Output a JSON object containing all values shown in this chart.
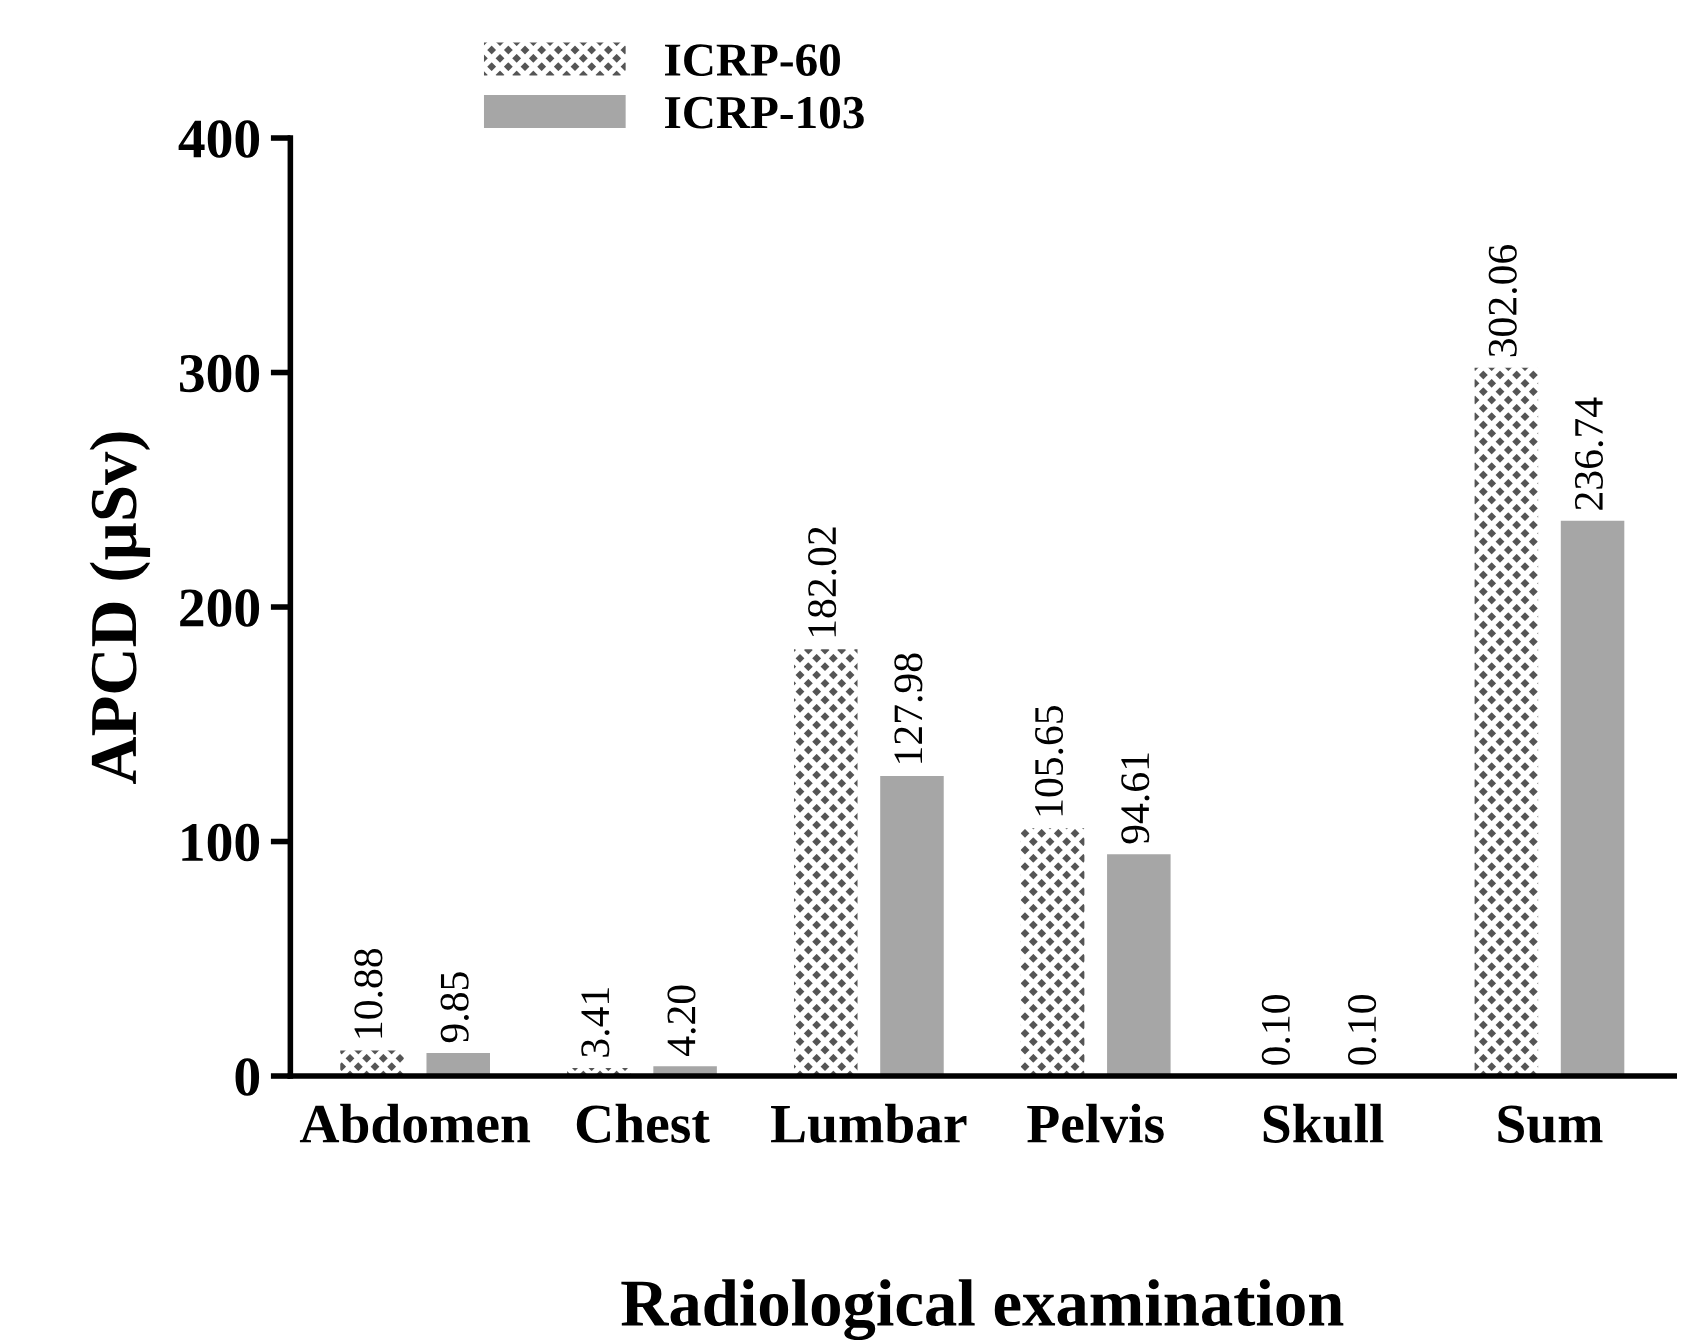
{
  "chart_data": {
    "type": "bar",
    "xlabel": "Radiological examination",
    "ylabel": "APCD (µSv)",
    "categories": [
      "Abdomen",
      "Chest",
      "Lumbar",
      "Pelvis",
      "Skull",
      "Sum"
    ],
    "series": [
      {
        "name": "ICRP-60",
        "color": "#555555",
        "values": [
          10.88,
          3.41,
          182.02,
          105.65,
          0.1,
          302.06
        ],
        "value_labels": [
          "10.88",
          "3.41",
          "182.02",
          "105.65",
          "0.10",
          "302.06"
        ]
      },
      {
        "name": "ICRP-103",
        "color": "#a6a6a6",
        "values": [
          9.85,
          4.2,
          127.98,
          94.61,
          0.1,
          236.74
        ],
        "value_labels": [
          "9.85",
          "4.20",
          "127.98",
          "94.61",
          "0.10",
          "236.74"
        ]
      }
    ],
    "ylim": [
      0,
      400
    ],
    "yticks": [
      0,
      100,
      200,
      300,
      400
    ],
    "legend": "top",
    "grid": false
  }
}
